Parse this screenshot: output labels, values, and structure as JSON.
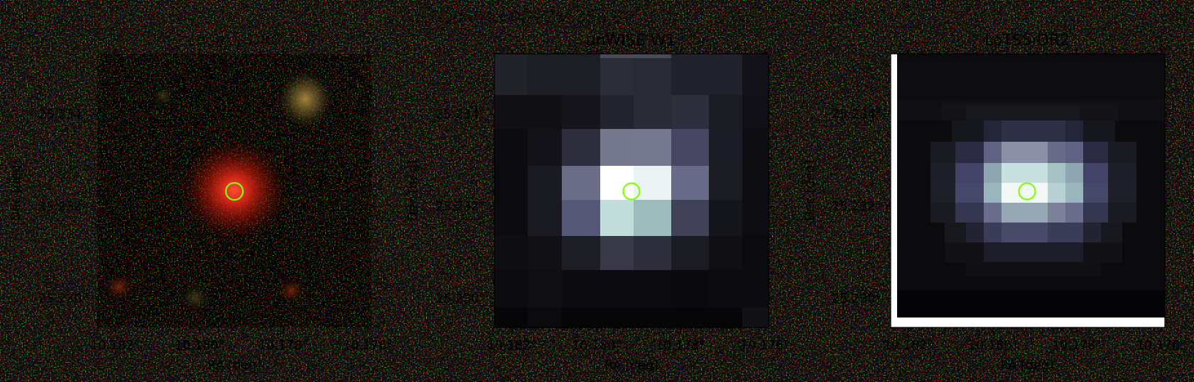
{
  "figure": {
    "title": "ILTJ004043.00+251356.6"
  },
  "panels": [
    {
      "id": "legacy",
      "title": "Legacy DR8",
      "xlabel": "RA [deg]",
      "ylabel": "Dec [deg]",
      "xticks": [
        "10.182°",
        "10.180°",
        "10.178°",
        "10.176°"
      ],
      "yticks": [
        "25.234°",
        "25.232°",
        "25.230°"
      ],
      "image": "RGB optical cutout, noisy red/green/blue pixels with bright red source at centre and faint sources at corners",
      "marker": "green circle at source position"
    },
    {
      "id": "unwise",
      "title": "unWISE W1",
      "xlabel": "RA [deg]",
      "ylabel": "Dec [deg]",
      "xticks": [
        "10.182°",
        "10.180°",
        "10.178°",
        "10.176°"
      ],
      "yticks": [
        "25.234°",
        "25.232°",
        "25.230°"
      ],
      "image": "coarse-pixel bone-colormap infrared cutout with bright central source",
      "marker": "green circle at source position"
    },
    {
      "id": "lotss",
      "title": "LoTSS DR2",
      "xlabel": "RA [deg]",
      "ylabel": "Dec [deg]",
      "xticks": [
        "10.182°",
        "10.180°",
        "10.178°",
        "10.176°"
      ],
      "yticks": [
        "25.234°",
        "25.232°",
        "25.230°"
      ],
      "image": "bone-colormap radio cutout with compact central source",
      "marker": "green circle at source position"
    }
  ],
  "colors": {
    "marker": "#7fff00",
    "frame": "#000000"
  }
}
